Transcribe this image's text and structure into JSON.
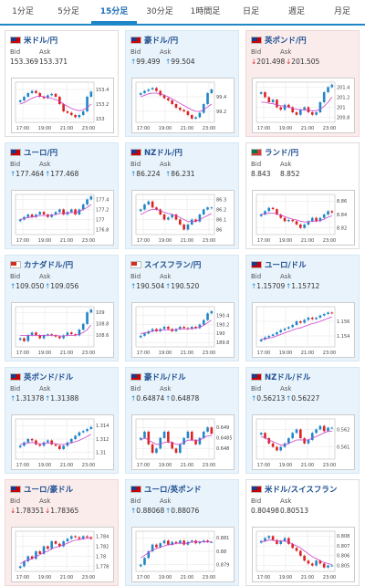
{
  "tabs": [
    {
      "label": "1分足"
    },
    {
      "label": "5分足"
    },
    {
      "label": "15分足",
      "active": true
    },
    {
      "label": "30分足"
    },
    {
      "label": "1時間足"
    },
    {
      "label": "日足"
    },
    {
      "label": "週足"
    },
    {
      "label": "月足"
    }
  ],
  "x_ticks": [
    "17:00",
    "19:00",
    "21:00",
    "23:00"
  ],
  "bid_label": "Bid",
  "ask_label": "Ask",
  "colors": {
    "up": "#1f86c8",
    "down": "#dd2222",
    "ma": "#cc44cc"
  },
  "pairs": [
    {
      "name": "米ドル/円",
      "dir": "none",
      "bid": "153.369",
      "ask": "153.371",
      "flag": [
        "#1d3b8a",
        "#c00"
      ],
      "y_ticks": [
        "153.4",
        "153.2",
        "153"
      ],
      "ylim": [
        152.95,
        153.5
      ],
      "close": [
        153.25,
        153.3,
        153.35,
        153.38,
        153.35,
        153.3,
        153.28,
        153.32,
        153.34,
        153.3,
        153.2,
        153.1,
        153.08,
        153.05,
        153.02,
        153.05,
        153.1,
        153.3,
        153.37
      ],
      "ma": [
        153.2,
        153.22,
        153.25,
        153.28,
        153.3,
        153.31,
        153.3,
        153.29,
        153.28,
        153.26,
        153.24,
        153.2,
        153.17,
        153.14,
        153.12,
        153.11,
        153.12,
        153.15,
        153.2
      ]
    },
    {
      "name": "豪ドル/円",
      "dir": "up",
      "bid": "99.499",
      "ask": "99.504",
      "flag": [
        "#1d3b8a",
        "#c00"
      ],
      "y_ticks": [
        "99.4",
        "99.2"
      ],
      "ylim": [
        99.05,
        99.6
      ],
      "close": [
        99.45,
        99.48,
        99.5,
        99.52,
        99.48,
        99.42,
        99.38,
        99.35,
        99.3,
        99.25,
        99.22,
        99.2,
        99.15,
        99.1,
        99.12,
        99.18,
        99.3,
        99.45,
        99.5
      ],
      "ma": [
        99.4,
        99.42,
        99.44,
        99.45,
        99.45,
        99.44,
        99.42,
        99.4,
        99.37,
        99.34,
        99.31,
        99.28,
        99.25,
        99.22,
        99.2,
        99.2,
        99.22,
        99.26,
        99.3
      ]
    },
    {
      "name": "英ポンド/円",
      "dir": "down",
      "bid": "201.498",
      "ask": "201.505",
      "flag": [
        "#1d3b8a",
        "#c00"
      ],
      "y_ticks": [
        "201.4",
        "201.2",
        "201",
        "200.8"
      ],
      "ylim": [
        200.7,
        201.5
      ],
      "close": [
        201.3,
        201.2,
        201.1,
        201.15,
        201.0,
        200.95,
        201.05,
        201.0,
        200.9,
        200.85,
        200.95,
        201.0,
        200.9,
        200.85,
        200.9,
        201.1,
        201.3,
        201.4,
        201.45
      ],
      "ma": [
        201.1,
        201.1,
        201.08,
        201.07,
        201.05,
        201.03,
        201.02,
        201.0,
        200.98,
        200.96,
        200.95,
        200.95,
        200.94,
        200.93,
        200.93,
        200.96,
        201.02,
        201.1,
        201.2
      ]
    },
    {
      "name": "ユーロ/円",
      "dir": "up",
      "bid": "177.464",
      "ask": "177.468",
      "flag": [
        "#1d3b8a",
        "#c00"
      ],
      "y_ticks": [
        "177.4",
        "177.2",
        "177",
        "176.8"
      ],
      "ylim": [
        176.7,
        177.5
      ],
      "close": [
        177.0,
        177.05,
        177.1,
        177.05,
        177.1,
        177.15,
        177.1,
        177.05,
        177.1,
        177.15,
        177.2,
        177.1,
        177.15,
        177.2,
        177.1,
        177.2,
        177.3,
        177.4,
        177.46
      ],
      "ma": [
        177.0,
        177.02,
        177.04,
        177.05,
        177.06,
        177.08,
        177.08,
        177.08,
        177.09,
        177.1,
        177.12,
        177.12,
        177.13,
        177.14,
        177.14,
        177.16,
        177.2,
        177.24,
        177.3
      ]
    },
    {
      "name": "NZドル/円",
      "dir": "up",
      "bid": "86.224",
      "ask": "86.231",
      "flag": [
        "#1d3b8a",
        "#c00"
      ],
      "y_ticks": [
        "86.3",
        "86.2",
        "86.1",
        "86"
      ],
      "ylim": [
        85.95,
        86.35
      ],
      "close": [
        86.2,
        86.25,
        86.28,
        86.22,
        86.2,
        86.15,
        86.1,
        86.12,
        86.15,
        86.1,
        86.05,
        86.0,
        86.05,
        86.1,
        86.08,
        86.15,
        86.2,
        86.22,
        86.22
      ],
      "ma": [
        86.15,
        86.17,
        86.19,
        86.2,
        86.2,
        86.19,
        86.17,
        86.16,
        86.15,
        86.14,
        86.12,
        86.1,
        86.08,
        86.08,
        86.08,
        86.1,
        86.12,
        86.14,
        86.16
      ]
    },
    {
      "name": "ランド/円",
      "dir": "none",
      "bid": "8.843",
      "ask": "8.852",
      "flag": [
        "#007a4d",
        "#de3831"
      ],
      "y_ticks": [
        "8.86",
        "8.84",
        "8.82"
      ],
      "ylim": [
        8.81,
        8.87
      ],
      "close": [
        8.84,
        8.845,
        8.85,
        8.848,
        8.84,
        8.835,
        8.83,
        8.832,
        8.83,
        8.825,
        8.82,
        8.825,
        8.83,
        8.835,
        8.83,
        8.835,
        8.84,
        8.845,
        8.843
      ],
      "ma": [
        8.84,
        8.841,
        8.842,
        8.842,
        8.841,
        8.839,
        8.837,
        8.835,
        8.833,
        8.832,
        8.83,
        8.829,
        8.829,
        8.83,
        8.83,
        8.831,
        8.833,
        8.836,
        8.838
      ]
    },
    {
      "name": "カナダドル/円",
      "dir": "up",
      "bid": "109.050",
      "ask": "109.056",
      "flag": [
        "#d52b1e",
        "#fff"
      ],
      "y_ticks": [
        "109",
        "108.8",
        "108.6"
      ],
      "ylim": [
        108.4,
        109.1
      ],
      "close": [
        108.55,
        108.5,
        108.6,
        108.65,
        108.6,
        108.55,
        108.6,
        108.62,
        108.6,
        108.58,
        108.55,
        108.6,
        108.65,
        108.62,
        108.6,
        108.7,
        108.8,
        109.0,
        109.05
      ],
      "ma": [
        108.6,
        108.6,
        108.6,
        108.6,
        108.6,
        108.6,
        108.6,
        108.6,
        108.6,
        108.6,
        108.59,
        108.59,
        108.6,
        108.6,
        108.6,
        108.62,
        108.65,
        108.7,
        108.78
      ]
    },
    {
      "name": "スイスフラン/円",
      "dir": "up",
      "bid": "190.504",
      "ask": "190.520",
      "flag": [
        "#d52b1e",
        "#fff"
      ],
      "y_ticks": [
        "190.4",
        "190.2",
        "190",
        "189.8"
      ],
      "ylim": [
        189.7,
        190.6
      ],
      "close": [
        189.95,
        190.0,
        190.05,
        190.1,
        190.05,
        190.1,
        190.15,
        190.1,
        190.05,
        190.1,
        190.15,
        190.12,
        190.1,
        190.15,
        190.12,
        190.2,
        190.3,
        190.45,
        190.5
      ],
      "ma": [
        190.0,
        190.01,
        190.03,
        190.05,
        190.06,
        190.07,
        190.08,
        190.08,
        190.08,
        190.09,
        190.1,
        190.1,
        190.1,
        190.11,
        190.12,
        190.14,
        190.18,
        190.24,
        190.3
      ]
    },
    {
      "name": "ユーロ/ドル",
      "dir": "up",
      "bid": "1.15709",
      "ask": "1.15712",
      "flag": [
        "#1d3b8a",
        "#c00"
      ],
      "y_ticks": [
        "1.156",
        "1.154"
      ],
      "ylim": [
        1.1525,
        1.158
      ],
      "close": [
        1.1535,
        1.1538,
        1.154,
        1.1542,
        1.1545,
        1.1548,
        1.155,
        1.1552,
        1.1555,
        1.156,
        1.1558,
        1.1562,
        1.1565,
        1.1563,
        1.1565,
        1.1568,
        1.157,
        1.1572,
        1.1571
      ],
      "ma": [
        1.1535,
        1.1536,
        1.1537,
        1.1538,
        1.154,
        1.1542,
        1.1544,
        1.1546,
        1.1548,
        1.155,
        1.1551,
        1.1553,
        1.1555,
        1.1557,
        1.1558,
        1.156,
        1.1562,
        1.1564,
        1.1566
      ]
    },
    {
      "name": "英ポンド/ドル",
      "dir": "up",
      "bid": "1.31378",
      "ask": "1.31388",
      "flag": [
        "#1d3b8a",
        "#c00"
      ],
      "y_ticks": [
        "1.314",
        "1.312",
        "1.31"
      ],
      "ylim": [
        1.309,
        1.315
      ],
      "close": [
        1.311,
        1.3115,
        1.312,
        1.3118,
        1.3112,
        1.311,
        1.3115,
        1.3118,
        1.3112,
        1.311,
        1.3105,
        1.311,
        1.3115,
        1.312,
        1.3125,
        1.313,
        1.3132,
        1.3135,
        1.3138
      ],
      "ma": [
        1.3112,
        1.3113,
        1.3114,
        1.3115,
        1.3114,
        1.3113,
        1.3113,
        1.3114,
        1.3114,
        1.3113,
        1.3112,
        1.3112,
        1.3113,
        1.3114,
        1.3116,
        1.3118,
        1.3121,
        1.3124,
        1.3127
      ]
    },
    {
      "name": "豪ドル/ドル",
      "dir": "up",
      "bid": "0.64874",
      "ask": "0.64878",
      "flag": [
        "#1d3b8a",
        "#c00"
      ],
      "y_ticks": [
        "0.649",
        "0.6485",
        "0.648"
      ],
      "ylim": [
        0.6475,
        0.6494
      ],
      "close": [
        0.6485,
        0.6488,
        0.6482,
        0.6478,
        0.648,
        0.6485,
        0.6488,
        0.6483,
        0.648,
        0.6478,
        0.6482,
        0.6485,
        0.6488,
        0.6484,
        0.6482,
        0.6485,
        0.6488,
        0.649,
        0.6487
      ],
      "ma": [
        0.6484,
        0.6485,
        0.6484,
        0.6483,
        0.6482,
        0.6482,
        0.6483,
        0.6483,
        0.6483,
        0.6482,
        0.6482,
        0.6483,
        0.6484,
        0.6484,
        0.6484,
        0.6484,
        0.6485,
        0.6486,
        0.6486
      ]
    },
    {
      "name": "NZドル/ドル",
      "dir": "up",
      "bid": "0.56213",
      "ask": "0.56227",
      "flag": [
        "#1d3b8a",
        "#c00"
      ],
      "y_ticks": [
        "0.562",
        "0.561"
      ],
      "ylim": [
        0.5603,
        0.5626
      ],
      "close": [
        0.5618,
        0.5615,
        0.5612,
        0.561,
        0.5608,
        0.561,
        0.5612,
        0.5615,
        0.5618,
        0.562,
        0.5615,
        0.5612,
        0.5614,
        0.5618,
        0.562,
        0.5622,
        0.5619,
        0.5621,
        0.5621
      ],
      "ma": [
        0.5616,
        0.5615,
        0.5614,
        0.5613,
        0.5612,
        0.5611,
        0.5611,
        0.5612,
        0.5613,
        0.5614,
        0.5614,
        0.5614,
        0.5614,
        0.5615,
        0.5616,
        0.5617,
        0.5618,
        0.5619,
        0.5619
      ]
    },
    {
      "name": "ユーロ/豪ドル",
      "dir": "down",
      "bid": "1.78351",
      "ask": "1.78365",
      "flag": [
        "#1d3b8a",
        "#c00"
      ],
      "y_ticks": [
        "1.784",
        "1.782",
        "1.78",
        "1.778"
      ],
      "ylim": [
        1.777,
        1.785
      ],
      "close": [
        1.778,
        1.779,
        1.78,
        1.7795,
        1.781,
        1.7805,
        1.782,
        1.7815,
        1.783,
        1.7825,
        1.782,
        1.783,
        1.7835,
        1.784,
        1.7838,
        1.7835,
        1.784,
        1.7838,
        1.7835
      ],
      "ma": [
        1.7785,
        1.779,
        1.7793,
        1.7795,
        1.78,
        1.7803,
        1.7808,
        1.781,
        1.7815,
        1.7818,
        1.782,
        1.7823,
        1.7826,
        1.783,
        1.7832,
        1.7833,
        1.7835,
        1.7836,
        1.7836
      ]
    },
    {
      "name": "ユーロ/英ポンド",
      "dir": "up",
      "bid": "0.88068",
      "ask": "0.88076",
      "flag": [
        "#1d3b8a",
        "#c00"
      ],
      "y_ticks": [
        "0.881",
        "0.88",
        "0.879"
      ],
      "ylim": [
        0.8785,
        0.8815
      ],
      "close": [
        0.879,
        0.8795,
        0.88,
        0.8805,
        0.8803,
        0.8806,
        0.8808,
        0.8805,
        0.8807,
        0.8806,
        0.8808,
        0.8805,
        0.8807,
        0.8808,
        0.8806,
        0.8807,
        0.8808,
        0.8807,
        0.8807
      ],
      "ma": [
        0.8795,
        0.8797,
        0.8799,
        0.8801,
        0.8802,
        0.8803,
        0.8804,
        0.8805,
        0.8805,
        0.8806,
        0.8806,
        0.8806,
        0.8806,
        0.8807,
        0.8807,
        0.8807,
        0.8807,
        0.8807,
        0.8807
      ]
    },
    {
      "name": "米ドル/スイスフラン",
      "dir": "none",
      "bid": "0.80498",
      "ask": "0.80513",
      "flag": [
        "#1d3b8a",
        "#c00"
      ],
      "y_ticks": [
        "0.808",
        "0.807",
        "0.806",
        "0.805"
      ],
      "ylim": [
        0.8044,
        0.8085
      ],
      "close": [
        0.8075,
        0.8078,
        0.808,
        0.8076,
        0.8072,
        0.8075,
        0.8078,
        0.8072,
        0.8068,
        0.8065,
        0.806,
        0.8055,
        0.8052,
        0.805,
        0.8055,
        0.8052,
        0.8048,
        0.805,
        0.805
      ],
      "ma": [
        0.8074,
        0.8075,
        0.8076,
        0.8076,
        0.8075,
        0.8075,
        0.8075,
        0.8074,
        0.8072,
        0.807,
        0.8068,
        0.8065,
        0.8062,
        0.8059,
        0.8057,
        0.8055,
        0.8053,
        0.8052,
        0.8051
      ]
    }
  ]
}
